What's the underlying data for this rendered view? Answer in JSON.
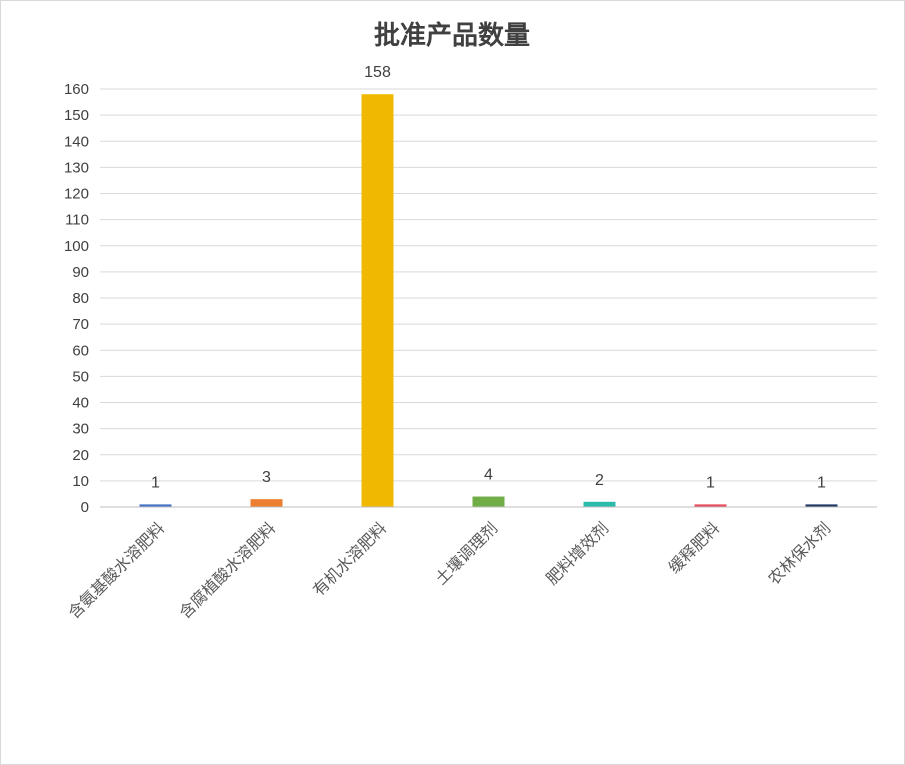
{
  "chart_data": {
    "type": "bar",
    "title": "批准产品数量",
    "categories": [
      "含氨基酸水溶肥料",
      "含腐植酸水溶肥料",
      "有机水溶肥料",
      "土壤调理剂",
      "肥料增效剂",
      "缓释肥料",
      "农林保水剂"
    ],
    "values": [
      1,
      3,
      158,
      4,
      2,
      1,
      1
    ],
    "colors": [
      "#4472c4",
      "#ed7d31",
      "#f0b800",
      "#70ad47",
      "#2bbbad",
      "#e84b5a",
      "#203864"
    ],
    "ylim": [
      0,
      160
    ],
    "yticks": [
      0,
      10,
      20,
      30,
      40,
      50,
      60,
      70,
      80,
      90,
      100,
      110,
      120,
      130,
      140,
      150,
      160
    ],
    "xlabel": "",
    "ylabel": "",
    "grid": true,
    "data_labels": true,
    "legend": "none"
  }
}
